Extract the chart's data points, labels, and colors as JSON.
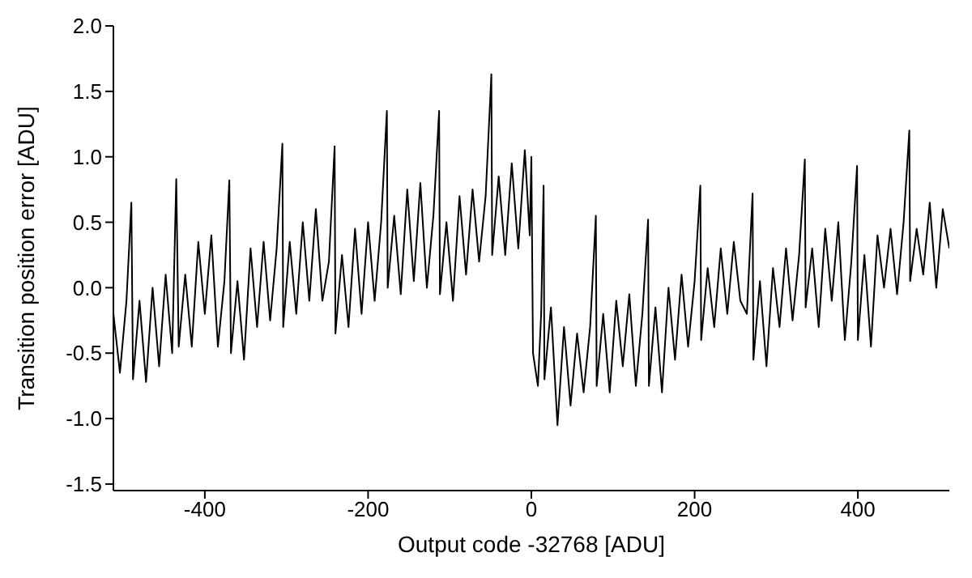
{
  "chart_data": {
    "type": "line",
    "xlabel": "Output code -32768 [ADU]",
    "ylabel": "Transition position error [ADU]",
    "xlim": [
      -512,
      512
    ],
    "xticks": [
      -400,
      -200,
      0,
      200,
      400
    ],
    "ylim": [
      -1.55,
      2.0
    ],
    "yticks": [
      {
        "value": -1.5,
        "label": "-1.5"
      },
      {
        "value": -1,
        "label": "-1.0"
      },
      {
        "value": -0.5,
        "label": "-0.5"
      },
      {
        "value": 0,
        "label": "0.0"
      },
      {
        "value": 0.5,
        "label": "0.5"
      },
      {
        "value": 1,
        "label": "1.0"
      },
      {
        "value": 1.5,
        "label": "1.5"
      },
      {
        "value": 2,
        "label": "2.0"
      }
    ],
    "grid": false,
    "legend": false,
    "marker": "none",
    "line_style": "solid",
    "series": [
      {
        "color": "#000000",
        "x": [
          -512,
          -504,
          -496,
          -490,
          -488,
          -480,
          -472,
          -464,
          -456,
          -448,
          -440,
          -435,
          -432,
          -424,
          -416,
          -408,
          -400,
          -392,
          -384,
          -376,
          -370,
          -368,
          -360,
          -352,
          -344,
          -336,
          -328,
          -320,
          -312,
          -305,
          -304,
          -296,
          -288,
          -280,
          -272,
          -264,
          -256,
          -248,
          -241,
          -240,
          -232,
          -224,
          -216,
          -208,
          -200,
          -192,
          -184,
          -177,
          -176,
          -168,
          -160,
          -152,
          -144,
          -136,
          -128,
          -120,
          -113,
          -112,
          -104,
          -96,
          -88,
          -80,
          -72,
          -64,
          -56,
          -49,
          -48,
          -40,
          -32,
          -24,
          -16,
          -8,
          -2,
          0,
          2,
          8,
          12,
          15,
          16,
          24,
          32,
          40,
          48,
          56,
          64,
          72,
          79,
          80,
          88,
          96,
          104,
          112,
          120,
          128,
          136,
          143,
          144,
          152,
          160,
          168,
          176,
          184,
          192,
          200,
          207,
          208,
          216,
          224,
          232,
          240,
          248,
          256,
          264,
          271,
          272,
          280,
          288,
          296,
          304,
          312,
          320,
          328,
          335,
          336,
          344,
          352,
          360,
          368,
          376,
          384,
          392,
          399,
          400,
          408,
          416,
          424,
          432,
          440,
          448,
          456,
          463,
          464,
          472,
          480,
          488,
          496,
          504,
          512
        ],
        "values": [
          -0.2,
          -0.65,
          -0.1,
          0.65,
          -0.7,
          -0.1,
          -0.72,
          0.0,
          -0.6,
          0.1,
          -0.5,
          0.83,
          -0.45,
          0.1,
          -0.45,
          0.35,
          -0.2,
          0.4,
          -0.45,
          0.05,
          0.82,
          -0.5,
          0.05,
          -0.55,
          0.3,
          -0.3,
          0.35,
          -0.25,
          0.3,
          1.1,
          -0.3,
          0.35,
          -0.2,
          0.5,
          -0.1,
          0.6,
          -0.1,
          0.2,
          1.08,
          -0.35,
          0.25,
          -0.3,
          0.45,
          -0.2,
          0.5,
          -0.1,
          0.5,
          1.35,
          0.0,
          0.55,
          -0.05,
          0.75,
          0.05,
          0.8,
          0.0,
          0.55,
          1.35,
          -0.05,
          0.5,
          -0.1,
          0.7,
          0.1,
          0.75,
          0.2,
          0.7,
          1.63,
          0.25,
          0.85,
          0.25,
          0.95,
          0.3,
          1.05,
          0.4,
          1.0,
          -0.5,
          -0.75,
          -0.2,
          0.78,
          -0.7,
          -0.15,
          -1.05,
          -0.3,
          -0.9,
          -0.35,
          -0.8,
          -0.3,
          0.55,
          -0.75,
          -0.2,
          -0.8,
          -0.1,
          -0.6,
          -0.05,
          -0.75,
          -0.2,
          0.52,
          -0.75,
          -0.15,
          -0.8,
          0.0,
          -0.55,
          0.1,
          -0.45,
          0.05,
          0.78,
          -0.4,
          0.15,
          -0.3,
          0.3,
          -0.2,
          0.35,
          -0.1,
          -0.2,
          0.72,
          -0.55,
          0.05,
          -0.6,
          0.15,
          -0.3,
          0.3,
          -0.25,
          0.25,
          0.98,
          -0.15,
          0.3,
          -0.3,
          0.45,
          -0.1,
          0.5,
          -0.4,
          0.2,
          0.93,
          -0.4,
          0.25,
          -0.45,
          0.4,
          0.0,
          0.45,
          -0.05,
          0.5,
          1.2,
          0.05,
          0.45,
          0.1,
          0.65,
          0.0,
          0.6,
          0.3
        ]
      }
    ]
  }
}
